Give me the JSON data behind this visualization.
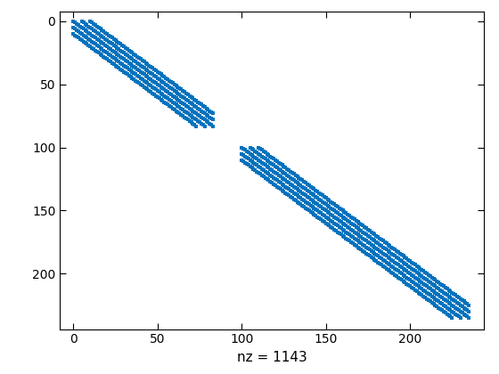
{
  "nz": 1143,
  "n": 236,
  "gap_start": 84,
  "gap_end": 100,
  "offsets": [
    -10,
    -5,
    0,
    5,
    10
  ],
  "marker_color": "#0072BD",
  "marker_size": 3.0,
  "xlim_lo": -8,
  "xlim_hi": 244,
  "ylim_lo": -8,
  "ylim_hi": 244,
  "xticks": [
    0,
    50,
    100,
    150,
    200
  ],
  "yticks": [
    0,
    50,
    100,
    150,
    200
  ],
  "xlabel": "nz = 1143",
  "xlabel_fontsize": 11,
  "tick_labelsize": 10,
  "background_color": "#ffffff",
  "fig_width": 5.6,
  "fig_height": 4.2,
  "dpi": 100
}
